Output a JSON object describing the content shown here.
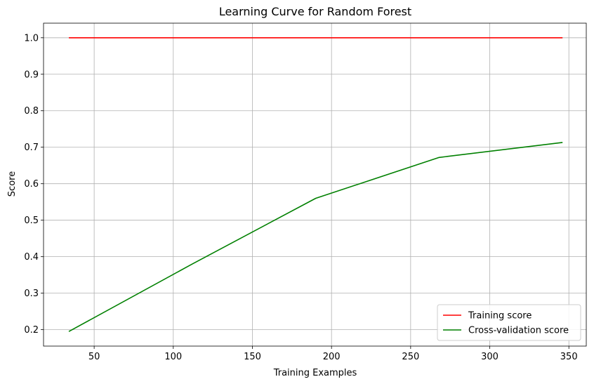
{
  "chart_data": {
    "type": "line",
    "title": "Learning Curve for Random Forest",
    "xlabel": "Training Examples",
    "ylabel": "Score",
    "xlim": [
      18,
      361
    ],
    "ylim": [
      0.155,
      1.04
    ],
    "xticks": [
      50,
      100,
      150,
      200,
      250,
      300,
      350
    ],
    "yticks": [
      0.2,
      0.3,
      0.4,
      0.5,
      0.6,
      0.7,
      0.8,
      0.9,
      1.0
    ],
    "grid": true,
    "legend_position": "bottom-right",
    "series": [
      {
        "name": "Training score",
        "color": "#ff0000",
        "x": [
          34,
          112,
          190,
          268,
          346
        ],
        "y": [
          1.0,
          1.0,
          1.0,
          1.0,
          1.0
        ]
      },
      {
        "name": "Cross-validation score",
        "color": "#008000",
        "x": [
          34,
          112,
          190,
          268,
          346
        ],
        "y": [
          0.195,
          0.38,
          0.56,
          0.672,
          0.713
        ]
      }
    ]
  }
}
